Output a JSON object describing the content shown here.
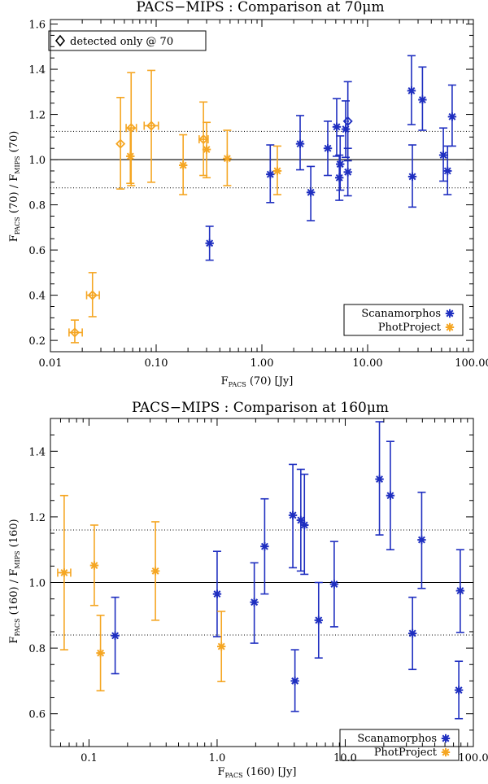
{
  "colors": {
    "scanamorphos": "#1f2fc0",
    "photproject": "#f5a623",
    "axis": "#000000"
  },
  "chart_data": [
    {
      "type": "scatter",
      "title": "PACS−MIPS : Comparison at 70μm",
      "xlabel": {
        "main": "F",
        "sub": "PACS",
        "rest": "  (70) [Jy]"
      },
      "ylabel": {
        "a": "F",
        "a_sub": "PACS",
        "mid": "  (70) / F",
        "b_sub": "MIPS",
        "rest": "  (70)"
      },
      "xscale": "log",
      "xlim": [
        0.01,
        100
      ],
      "ylim": [
        0.15,
        1.62
      ],
      "xticks": [
        0.01,
        0.1,
        1,
        10,
        100
      ],
      "xtick_labels": [
        "0.01",
        "0.10",
        "1.00",
        "10.00",
        "100.00"
      ],
      "yticks": [
        0.2,
        0.4,
        0.6,
        0.8,
        1.0,
        1.2,
        1.4,
        1.6
      ],
      "ytick_labels": [
        "0.2",
        "0.4",
        "0.6",
        "0.8",
        "1.0",
        "1.2",
        "1.4",
        "1.6"
      ],
      "reference_line": 1.0,
      "dotted_lines": [
        0.875,
        1.125
      ],
      "legend": {
        "position": "bottom-right",
        "entries": [
          "Scanamorphos",
          "PhotProject"
        ]
      },
      "detected_note": "detected only @ 70",
      "series": [
        {
          "name": "Scanamorphos",
          "points": [
            {
              "x": 0.32,
              "y": 0.63,
              "lo": 0.555,
              "hi": 0.705
            },
            {
              "x": 1.2,
              "y": 0.935,
              "lo": 0.81,
              "hi": 1.065
            },
            {
              "x": 2.3,
              "y": 1.07,
              "lo": 0.955,
              "hi": 1.195
            },
            {
              "x": 2.9,
              "y": 0.855,
              "lo": 0.73,
              "hi": 0.97
            },
            {
              "x": 4.2,
              "y": 1.05,
              "lo": 0.93,
              "hi": 1.17
            },
            {
              "x": 5.1,
              "y": 1.145,
              "lo": 1.015,
              "hi": 1.27
            },
            {
              "x": 5.4,
              "y": 0.92,
              "lo": 0.82,
              "hi": 1.02
            },
            {
              "x": 5.5,
              "y": 0.98,
              "lo": 0.865,
              "hi": 1.105
            },
            {
              "x": 6.2,
              "y": 1.135,
              "lo": 1.01,
              "hi": 1.26
            },
            {
              "x": 6.5,
              "y": 0.945,
              "lo": 0.84,
              "hi": 1.05
            },
            {
              "x": 26,
              "y": 1.305,
              "lo": 1.155,
              "hi": 1.46
            },
            {
              "x": 26.5,
              "y": 0.925,
              "lo": 0.79,
              "hi": 1.065
            },
            {
              "x": 33,
              "y": 1.265,
              "lo": 1.13,
              "hi": 1.41
            },
            {
              "x": 52,
              "y": 1.02,
              "lo": 0.905,
              "hi": 1.14
            },
            {
              "x": 57,
              "y": 0.95,
              "lo": 0.845,
              "hi": 1.06
            },
            {
              "x": 63,
              "y": 1.19,
              "lo": 1.06,
              "hi": 1.33
            }
          ]
        },
        {
          "name": "PhotProject",
          "points": [
            {
              "x": 0.057,
              "y": 1.015,
              "lo": 0.895,
              "hi": 1.14
            },
            {
              "x": 0.18,
              "y": 0.975,
              "lo": 0.845,
              "hi": 1.11
            },
            {
              "x": 0.3,
              "y": 1.045,
              "lo": 0.92,
              "hi": 1.165
            },
            {
              "x": 0.47,
              "y": 1.005,
              "lo": 0.885,
              "hi": 1.13
            },
            {
              "x": 1.4,
              "y": 0.95,
              "lo": 0.845,
              "hi": 1.06
            }
          ]
        }
      ],
      "detected_only": [
        {
          "x": 0.017,
          "y": 0.235,
          "lo": 0.19,
          "hi": 0.29,
          "xlo": 0.015,
          "xhi": 0.02,
          "color": "photproject"
        },
        {
          "x": 0.025,
          "y": 0.4,
          "lo": 0.305,
          "hi": 0.5,
          "xlo": 0.022,
          "xhi": 0.029,
          "color": "photproject"
        },
        {
          "x": 0.046,
          "y": 1.07,
          "lo": 0.87,
          "hi": 1.275,
          "color": "photproject"
        },
        {
          "x": 0.058,
          "y": 1.14,
          "lo": 0.885,
          "hi": 1.385,
          "xlo": 0.052,
          "xhi": 0.065,
          "color": "photproject"
        },
        {
          "x": 0.09,
          "y": 1.15,
          "lo": 0.9,
          "hi": 1.395,
          "xlo": 0.077,
          "xhi": 0.105,
          "color": "photproject"
        },
        {
          "x": 0.28,
          "y": 1.09,
          "lo": 0.93,
          "hi": 1.255,
          "xlo": 0.255,
          "xhi": 0.31,
          "color": "photproject"
        },
        {
          "x": 6.5,
          "y": 1.17,
          "lo": 0.995,
          "hi": 1.345,
          "color": "scanamorphos"
        }
      ]
    },
    {
      "type": "scatter",
      "title": "PACS−MIPS : Comparison at 160μm",
      "xlabel": {
        "main": "F",
        "sub": "PACS",
        "rest": "  (160) [Jy]"
      },
      "ylabel": {
        "a": "F",
        "a_sub": "PACS",
        "mid": "  (160) / F",
        "b_sub": "MIPS",
        "rest": "  (160)"
      },
      "xscale": "log",
      "xlim": [
        0.05,
        100
      ],
      "ylim": [
        0.5,
        1.5
      ],
      "xticks": [
        0.1,
        1,
        10,
        100
      ],
      "xtick_labels": [
        "0.1",
        "1.0",
        "10.0",
        "100.0"
      ],
      "yticks": [
        0.6,
        0.8,
        1.0,
        1.2,
        1.4
      ],
      "ytick_labels": [
        "0.6",
        "0.8",
        "1.0",
        "1.2",
        "1.4"
      ],
      "reference_line": 1.0,
      "dotted_lines": [
        0.84,
        1.16
      ],
      "legend": {
        "position": "bottom-right",
        "entries": [
          "Scanamorphos",
          "PhotProject"
        ]
      },
      "series": [
        {
          "name": "Scanamorphos",
          "points": [
            {
              "x": 0.16,
              "y": 0.838,
              "lo": 0.722,
              "hi": 0.955
            },
            {
              "x": 1.0,
              "y": 0.965,
              "lo": 0.835,
              "hi": 1.095
            },
            {
              "x": 1.95,
              "y": 0.94,
              "lo": 0.815,
              "hi": 1.06
            },
            {
              "x": 2.35,
              "y": 1.11,
              "lo": 0.965,
              "hi": 1.255
            },
            {
              "x": 3.9,
              "y": 1.205,
              "lo": 1.045,
              "hi": 1.36
            },
            {
              "x": 4.05,
              "y": 0.7,
              "lo": 0.607,
              "hi": 0.795
            },
            {
              "x": 4.5,
              "y": 1.19,
              "lo": 1.035,
              "hi": 1.345
            },
            {
              "x": 4.8,
              "y": 1.175,
              "lo": 1.025,
              "hi": 1.33
            },
            {
              "x": 6.2,
              "y": 0.885,
              "lo": 0.77,
              "hi": 1.0
            },
            {
              "x": 8.2,
              "y": 0.995,
              "lo": 0.865,
              "hi": 1.125
            },
            {
              "x": 18.5,
              "y": 1.315,
              "lo": 1.145,
              "hi": 1.49
            },
            {
              "x": 22.5,
              "y": 1.265,
              "lo": 1.1,
              "hi": 1.43
            },
            {
              "x": 33.5,
              "y": 0.845,
              "lo": 0.735,
              "hi": 0.955
            },
            {
              "x": 39.5,
              "y": 1.13,
              "lo": 0.982,
              "hi": 1.275
            },
            {
              "x": 77,
              "y": 0.672,
              "lo": 0.585,
              "hi": 0.76
            },
            {
              "x": 79,
              "y": 0.975,
              "lo": 0.848,
              "hi": 1.1
            }
          ]
        },
        {
          "name": "PhotProject",
          "points": [
            {
              "x": 0.064,
              "y": 1.03,
              "lo": 0.795,
              "hi": 1.265,
              "xlo": 0.057,
              "xhi": 0.072
            },
            {
              "x": 0.11,
              "y": 1.052,
              "lo": 0.93,
              "hi": 1.175
            },
            {
              "x": 0.123,
              "y": 0.785,
              "lo": 0.67,
              "hi": 0.9
            },
            {
              "x": 0.33,
              "y": 1.035,
              "lo": 0.885,
              "hi": 1.185
            },
            {
              "x": 1.08,
              "y": 0.805,
              "lo": 0.698,
              "hi": 0.912
            }
          ]
        }
      ]
    }
  ]
}
